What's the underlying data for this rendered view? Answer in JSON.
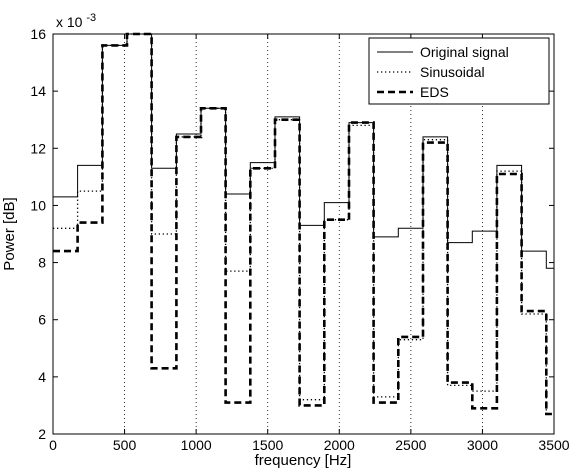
{
  "chart_data": {
    "type": "line",
    "title": "",
    "xlabel": "frequency [Hz]",
    "ylabel": "Power [dB]",
    "scale_label": "x 10",
    "scale_exponent": "-3",
    "xlim": [
      0,
      3500
    ],
    "ylim": [
      2,
      16
    ],
    "grid": "vertical dotted",
    "legend_position": "top-right",
    "x_ticks": [
      0,
      500,
      1000,
      1500,
      2000,
      2500,
      3000,
      3500
    ],
    "y_ticks": [
      2,
      4,
      6,
      8,
      10,
      12,
      14,
      16
    ],
    "bin_edges": [
      0,
      172,
      345,
      517,
      689,
      862,
      1034,
      1206,
      1378,
      1551,
      1723,
      1895,
      2068,
      2240,
      2412,
      2585,
      2757,
      2929,
      3101,
      3274,
      3446,
      3500
    ],
    "series": [
      {
        "name": "Original signal",
        "style": "solid",
        "values": [
          10.3,
          11.4,
          15.6,
          16.0,
          11.3,
          12.5,
          13.4,
          10.4,
          11.5,
          13.1,
          9.3,
          10.1,
          12.9,
          8.9,
          9.2,
          12.4,
          8.7,
          9.1,
          11.4,
          8.4,
          7.8
        ]
      },
      {
        "name": "Sinusoidal",
        "style": "dotted",
        "values": [
          9.2,
          10.5,
          15.6,
          16.0,
          9.0,
          12.4,
          13.4,
          7.7,
          11.3,
          13.0,
          3.2,
          9.5,
          12.8,
          3.3,
          5.3,
          12.3,
          3.7,
          3.5,
          11.2,
          6.2,
          2.7
        ]
      },
      {
        "name": "EDS",
        "style": "dashed",
        "values": [
          8.4,
          9.4,
          15.6,
          16.0,
          4.3,
          12.4,
          13.4,
          3.1,
          11.3,
          13.0,
          3.0,
          9.5,
          12.9,
          3.1,
          5.4,
          12.2,
          3.8,
          2.9,
          11.1,
          6.3,
          2.7
        ]
      }
    ]
  }
}
